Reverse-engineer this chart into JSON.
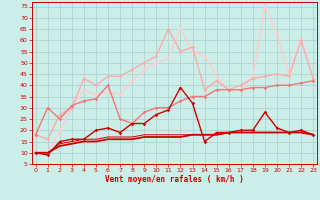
{
  "xlabel": "Vent moyen/en rafales ( km/h )",
  "background_color": "#cceee8",
  "grid_color": "#aacccc",
  "text_color": "#cc0000",
  "xlim": [
    -0.3,
    23.3
  ],
  "ylim": [
    5,
    77
  ],
  "yticks": [
    5,
    10,
    15,
    20,
    25,
    30,
    35,
    40,
    45,
    50,
    55,
    60,
    65,
    70,
    75
  ],
  "xticks": [
    0,
    1,
    2,
    3,
    4,
    5,
    6,
    7,
    8,
    9,
    10,
    11,
    12,
    13,
    14,
    15,
    16,
    17,
    18,
    19,
    20,
    21,
    22,
    23
  ],
  "series": [
    {
      "x": [
        0,
        1,
        2,
        3,
        4,
        5,
        6,
        7,
        8,
        9,
        10,
        11,
        12,
        13,
        14,
        15,
        16,
        17,
        18,
        19,
        20,
        21,
        22,
        23
      ],
      "y": [
        10,
        9,
        15,
        16,
        16,
        20,
        21,
        19,
        23,
        23,
        27,
        29,
        39,
        32,
        15,
        19,
        19,
        20,
        20,
        28,
        21,
        19,
        20,
        18
      ],
      "color": "#cc0000",
      "marker": "D",
      "markersize": 1.8,
      "linewidth": 1.0,
      "alpha": 1.0,
      "zorder": 6
    },
    {
      "x": [
        0,
        1,
        2,
        3,
        4,
        5,
        6,
        7,
        8,
        9,
        10,
        11,
        12,
        13,
        14,
        15,
        16,
        17,
        18,
        19,
        20,
        21,
        22,
        23
      ],
      "y": [
        10,
        10,
        13,
        14,
        15,
        15,
        16,
        16,
        16,
        17,
        17,
        17,
        17,
        18,
        18,
        18,
        19,
        19,
        19,
        19,
        19,
        19,
        19,
        18
      ],
      "color": "#cc0000",
      "marker": null,
      "markersize": 0,
      "linewidth": 1.3,
      "alpha": 1.0,
      "zorder": 5
    },
    {
      "x": [
        0,
        1,
        2,
        3,
        4,
        5,
        6,
        7,
        8,
        9,
        10,
        11,
        12,
        13,
        14,
        15,
        16,
        17,
        18,
        19,
        20,
        21,
        22,
        23
      ],
      "y": [
        10,
        10,
        14,
        15,
        16,
        16,
        17,
        17,
        17,
        18,
        18,
        18,
        18,
        18,
        18,
        18,
        19,
        19,
        19,
        19,
        19,
        19,
        19,
        18
      ],
      "color": "#cc0000",
      "marker": null,
      "markersize": 0,
      "linewidth": 0.7,
      "alpha": 1.0,
      "zorder": 5
    },
    {
      "x": [
        0,
        1,
        2,
        3,
        4,
        5,
        6,
        7,
        8,
        9,
        10,
        11,
        12,
        13,
        14,
        15,
        16,
        17,
        18,
        19,
        20,
        21,
        22,
        23
      ],
      "y": [
        18,
        30,
        25,
        31,
        33,
        34,
        40,
        25,
        23,
        28,
        30,
        30,
        33,
        35,
        35,
        38,
        38,
        38,
        39,
        39,
        40,
        40,
        41,
        42
      ],
      "color": "#ee7777",
      "marker": "D",
      "markersize": 1.8,
      "linewidth": 1.0,
      "alpha": 1.0,
      "zorder": 4
    },
    {
      "x": [
        0,
        1,
        2,
        3,
        4,
        5,
        6,
        7,
        8,
        9,
        10,
        11,
        12,
        13,
        14,
        15,
        16,
        17,
        18,
        19,
        20,
        21,
        22,
        23
      ],
      "y": [
        18,
        16,
        27,
        30,
        43,
        40,
        44,
        44,
        47,
        50,
        53,
        65,
        55,
        57,
        38,
        42,
        38,
        40,
        43,
        44,
        45,
        44,
        60,
        43
      ],
      "color": "#ffaaaa",
      "marker": "D",
      "markersize": 1.8,
      "linewidth": 1.0,
      "alpha": 1.0,
      "zorder": 3
    },
    {
      "x": [
        0,
        1,
        2,
        3,
        4,
        5,
        6,
        7,
        8,
        9,
        10,
        11,
        12,
        13,
        14,
        15,
        16,
        17,
        18,
        19,
        20,
        21,
        22,
        23
      ],
      "y": [
        10,
        10,
        20,
        30,
        38,
        36,
        37,
        36,
        42,
        47,
        50,
        52,
        65,
        55,
        53,
        44,
        38,
        38,
        44,
        75,
        63,
        45,
        60,
        43
      ],
      "color": "#ffcccc",
      "marker": "D",
      "markersize": 1.8,
      "linewidth": 1.0,
      "alpha": 1.0,
      "zorder": 2
    }
  ]
}
